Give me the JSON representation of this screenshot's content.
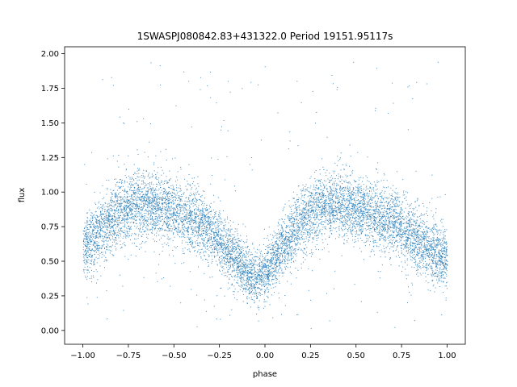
{
  "chart_data": {
    "type": "scatter",
    "title": "1SWASPJ080842.83+431322.0 Period 19151.95117s",
    "xlabel": "phase",
    "ylabel": "flux",
    "xlim": [
      -1.1,
      1.1
    ],
    "ylim": [
      -0.1,
      2.05
    ],
    "x_ticks": [
      -1.0,
      -0.75,
      -0.5,
      -0.25,
      0.0,
      0.25,
      0.5,
      0.75,
      1.0
    ],
    "x_tick_labels": [
      "−1.00",
      "−0.75",
      "−0.50",
      "−0.25",
      "0.00",
      "0.25",
      "0.50",
      "0.75",
      "1.00"
    ],
    "y_ticks": [
      0.0,
      0.25,
      0.5,
      0.75,
      1.0,
      1.25,
      1.5,
      1.75,
      2.0
    ],
    "y_tick_labels": [
      "0.00",
      "0.25",
      "0.50",
      "0.75",
      "1.00",
      "1.25",
      "1.50",
      "1.75",
      "2.00"
    ],
    "grid": false,
    "point_color": "#1f77b4",
    "series": [
      {
        "x_range": [
          -1.0,
          1.0
        ],
        "phase_flux_profile": {
          "phase": [
            -1.0,
            -0.9,
            -0.8,
            -0.7,
            -0.6,
            -0.5,
            -0.4,
            -0.3,
            -0.2,
            -0.1,
            -0.05,
            0.0,
            0.1,
            0.2,
            0.3,
            0.4,
            0.5,
            0.6,
            0.7,
            0.8,
            0.9,
            1.0
          ],
          "flux_center": [
            0.58,
            0.72,
            0.86,
            0.92,
            0.9,
            0.86,
            0.8,
            0.72,
            0.58,
            0.42,
            0.38,
            0.42,
            0.62,
            0.8,
            0.9,
            0.92,
            0.88,
            0.84,
            0.8,
            0.7,
            0.58,
            0.52
          ],
          "flux_spread": [
            0.2,
            0.22,
            0.22,
            0.22,
            0.22,
            0.22,
            0.22,
            0.2,
            0.18,
            0.18,
            0.18,
            0.18,
            0.2,
            0.22,
            0.22,
            0.22,
            0.22,
            0.22,
            0.22,
            0.22,
            0.2,
            0.2
          ]
        },
        "flux_range": [
          0.0,
          1.95
        ]
      }
    ]
  }
}
